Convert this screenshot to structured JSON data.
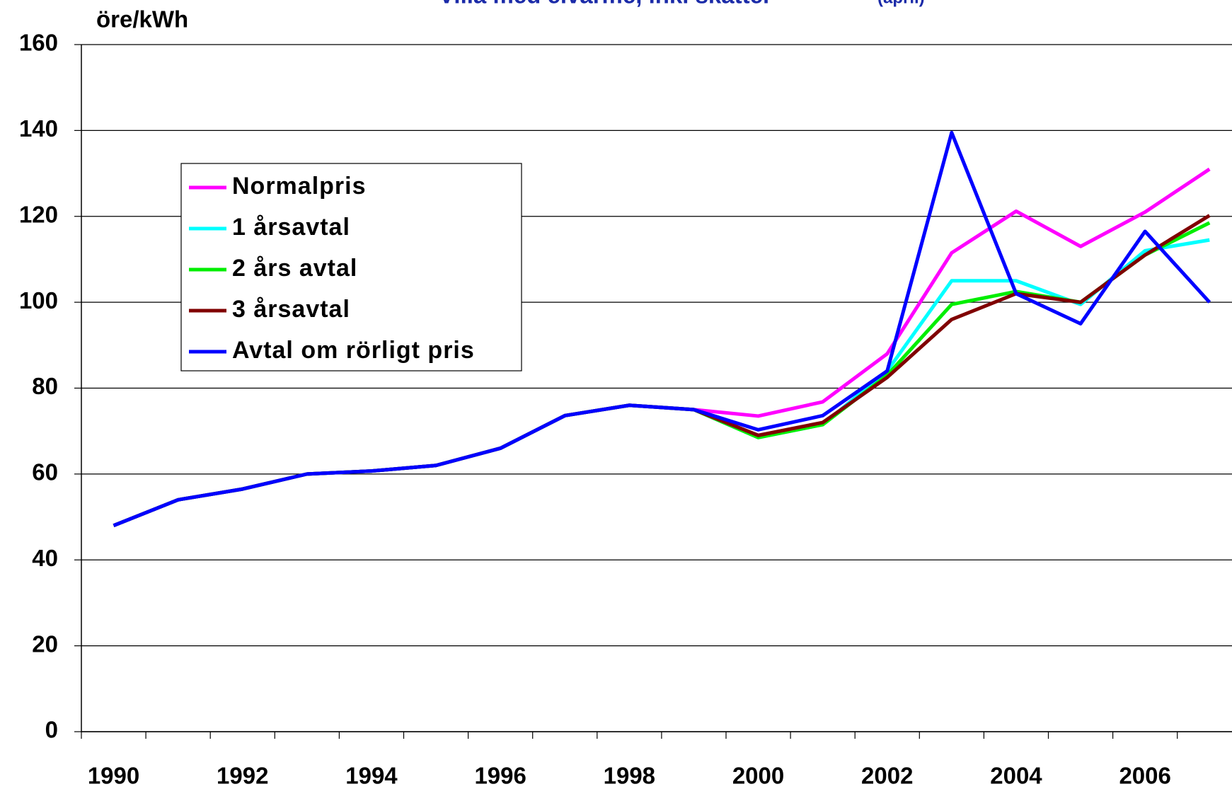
{
  "chart_data": {
    "type": "line",
    "title": "Villa med elvärme, inkl skatter",
    "subtitle": "(april)",
    "y_axis_label": "öre/kWh",
    "categories": [
      "1990",
      null,
      "1992",
      null,
      "1994",
      null,
      "1996",
      null,
      "1998",
      null,
      "2000",
      null,
      "2002",
      null,
      "2004",
      null,
      "2006",
      null
    ],
    "ylim": [
      0,
      160
    ],
    "yticks": [
      0,
      20,
      40,
      60,
      80,
      100,
      120,
      140,
      160
    ],
    "grid": true,
    "legend": "upper left",
    "series": [
      {
        "name": "Normalpris",
        "color": "#ff00ff",
        "values": [
          48,
          54,
          56.5,
          60,
          60.7,
          62,
          66,
          73.6,
          76,
          75,
          73.5,
          76.8,
          88,
          111.5,
          121.2,
          113,
          121,
          131
        ]
      },
      {
        "name": "1 årsavtal",
        "color": "#00ffff",
        "values": [
          48,
          54,
          56.5,
          60,
          60.7,
          62,
          66,
          73.6,
          76,
          75,
          68.5,
          71.5,
          84,
          105,
          105,
          99.5,
          112,
          114.5
        ]
      },
      {
        "name": "2 års avtal",
        "color": "#00ee00",
        "values": [
          48,
          54,
          56.5,
          60,
          60.7,
          62,
          66,
          73.6,
          76,
          75,
          68.5,
          71.5,
          83,
          99.5,
          102.5,
          100,
          111,
          118.5
        ]
      },
      {
        "name": "3 årsavtal",
        "color": "#800000",
        "values": [
          48,
          54,
          56.5,
          60,
          60.7,
          62,
          66,
          73.6,
          76,
          75,
          69,
          72,
          82.5,
          96,
          102,
          100,
          111,
          120.2
        ]
      },
      {
        "name": "Avtal om rörligt pris",
        "color": "#0000ff",
        "values": [
          48,
          54,
          56.5,
          60,
          60.7,
          62,
          66,
          73.6,
          76,
          75,
          70.3,
          73.6,
          84,
          139.5,
          102,
          95,
          116.5,
          100
        ]
      }
    ]
  }
}
